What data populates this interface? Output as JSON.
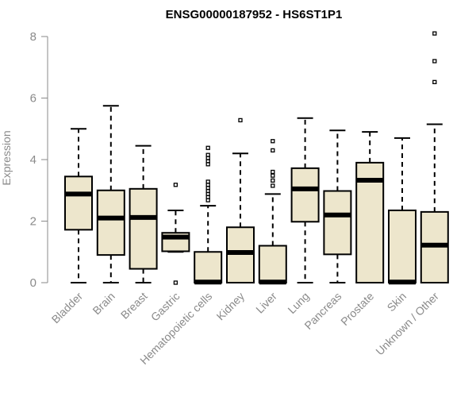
{
  "chart_data": {
    "type": "boxplot",
    "title": "ENSG00000187952 - HS6ST1P1",
    "xlabel": "",
    "ylabel": "Expression",
    "ylim": [
      0,
      8
    ],
    "yticks": [
      0,
      2,
      4,
      6,
      8
    ],
    "box_fill": "#ede6cc",
    "categories": [
      "Bladder",
      "Brain",
      "Breast",
      "Gastric",
      "Hematopoietic cells",
      "Kidney",
      "Liver",
      "Lung",
      "Pancreas",
      "Prostate",
      "Skin",
      "Unknown / Other"
    ],
    "series": [
      {
        "name": "Bladder",
        "min": 0.0,
        "q1": 1.72,
        "median": 2.88,
        "q3": 3.45,
        "max": 5.0,
        "outliers": []
      },
      {
        "name": "Brain",
        "min": 0.0,
        "q1": 0.9,
        "median": 2.1,
        "q3": 3.0,
        "max": 5.75,
        "outliers": []
      },
      {
        "name": "Breast",
        "min": 0.0,
        "q1": 0.45,
        "median": 2.12,
        "q3": 3.05,
        "max": 4.45,
        "outliers": []
      },
      {
        "name": "Gastric",
        "min": 1.0,
        "q1": 1.02,
        "median": 1.48,
        "q3": 1.62,
        "max": 2.35,
        "outliers": [
          0.0,
          3.18
        ]
      },
      {
        "name": "Hematopoietic cells",
        "min": 0.0,
        "q1": 0.0,
        "median": 0.02,
        "q3": 1.0,
        "max": 2.5,
        "outliers": [
          2.68,
          2.78,
          2.88,
          2.98,
          3.08,
          3.18,
          3.28,
          3.85,
          3.95,
          4.05,
          4.15,
          4.38
        ]
      },
      {
        "name": "Kidney",
        "min": 0.0,
        "q1": 0.0,
        "median": 0.98,
        "q3": 1.8,
        "max": 4.2,
        "outliers": [
          5.28
        ]
      },
      {
        "name": "Liver",
        "min": 0.0,
        "q1": 0.0,
        "median": 0.02,
        "q3": 1.2,
        "max": 2.88,
        "outliers": [
          3.15,
          3.32,
          3.48,
          3.6,
          4.3,
          4.6
        ]
      },
      {
        "name": "Lung",
        "min": 0.0,
        "q1": 1.98,
        "median": 3.05,
        "q3": 3.72,
        "max": 5.35,
        "outliers": []
      },
      {
        "name": "Pancreas",
        "min": 0.0,
        "q1": 0.92,
        "median": 2.2,
        "q3": 2.98,
        "max": 4.95,
        "outliers": []
      },
      {
        "name": "Prostate",
        "min": 0.0,
        "q1": 0.0,
        "median": 3.33,
        "q3": 3.9,
        "max": 4.9,
        "outliers": []
      },
      {
        "name": "Skin",
        "min": 0.0,
        "q1": 0.0,
        "median": 0.02,
        "q3": 2.35,
        "max": 4.7,
        "outliers": []
      },
      {
        "name": "Unknown / Other",
        "min": 0.0,
        "q1": 0.0,
        "median": 1.22,
        "q3": 2.3,
        "max": 5.15,
        "outliers": [
          6.52,
          7.2,
          8.1
        ]
      }
    ]
  }
}
